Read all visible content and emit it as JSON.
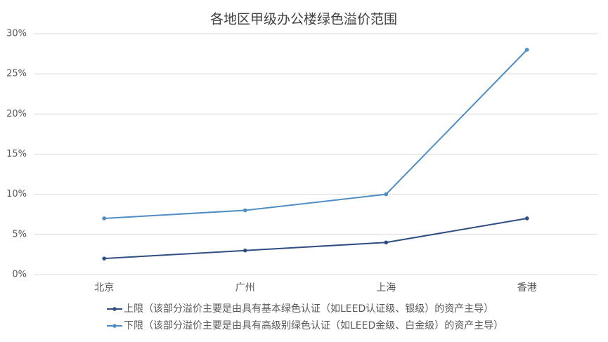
{
  "chart_data": {
    "type": "line",
    "title": "各地区甲级办公楼绿色溢价范围",
    "categories": [
      "北京",
      "广州",
      "上海",
      "香港"
    ],
    "series": [
      {
        "name": "上限（该部分溢价主要是由具有基本绿色认证（如LEED认证级、银级）的资产主导）",
        "color": "#2f4e83",
        "values": [
          2,
          3,
          4,
          7
        ]
      },
      {
        "name": "下限（该部分溢价主要是由具有高级别绿色认证（如LEED金级、白金级）的资产主导）",
        "color": "#4f8dc5",
        "values": [
          7,
          8,
          10,
          28
        ]
      }
    ],
    "ylim": [
      0,
      30
    ],
    "yticks": [
      {
        "value": 0,
        "label": "0%"
      },
      {
        "value": 5,
        "label": "5%"
      },
      {
        "value": 10,
        "label": "10%"
      },
      {
        "value": 15,
        "label": "15%"
      },
      {
        "value": 20,
        "label": "20%"
      },
      {
        "value": 25,
        "label": "25%"
      },
      {
        "value": 30,
        "label": "30%"
      }
    ],
    "grid": true,
    "legend": "bottom"
  }
}
